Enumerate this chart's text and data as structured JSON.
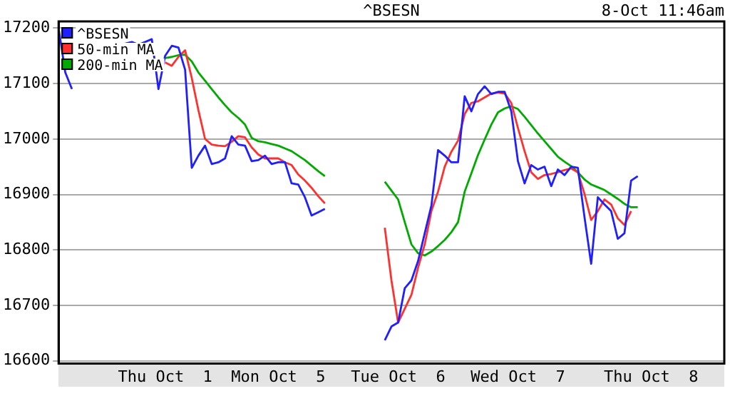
{
  "chart_data": {
    "type": "line",
    "title": "^BSESN",
    "subtitle": "8-Oct 11:46am",
    "categories": [
      null,
      null,
      null,
      null,
      null,
      null,
      null,
      null,
      null,
      null,
      null,
      null,
      null,
      null,
      null,
      null,
      "Thu Oct  1",
      null,
      null,
      null,
      null,
      null,
      null,
      null,
      null,
      null,
      null,
      null,
      null,
      null,
      null,
      null,
      null,
      "Mon Oct  5",
      null,
      null,
      null,
      null,
      null,
      null,
      null,
      null,
      null,
      null,
      null,
      null,
      null,
      null,
      null,
      null,
      null,
      "Tue Oct  6",
      null,
      null,
      null,
      null,
      null,
      null,
      null,
      null,
      null,
      null,
      null,
      null,
      null,
      null,
      null,
      null,
      null,
      "Wed Oct  7",
      null,
      null,
      null,
      null,
      null,
      null,
      null,
      null,
      null,
      null,
      null,
      null,
      null,
      null,
      null,
      null,
      null,
      null,
      null,
      "Thu Oct  8",
      null,
      null,
      null,
      null,
      null,
      null,
      null,
      null,
      null,
      null,
      null
    ],
    "ylim": [
      16595,
      17212
    ],
    "yticks": [
      16600,
      16700,
      16800,
      16900,
      17000,
      17100,
      17200
    ],
    "grid": "y",
    "legend": "top left",
    "series": [
      {
        "name": "^BSESN",
        "color": "#1f1fff",
        "values": [
          17200,
          17120,
          17090,
          null,
          null,
          null,
          null,
          null,
          null,
          null,
          17172,
          17175,
          17170,
          17175,
          17180,
          17090,
          17150,
          17168,
          17165,
          17125,
          16948,
          16970,
          16988,
          16955,
          16958,
          16965,
          17005,
          16990,
          16988,
          16960,
          16962,
          16970,
          16955,
          16958,
          16958,
          16920,
          16918,
          16895,
          16862,
          16868,
          16874,
          null,
          null,
          null,
          null,
          null,
          null,
          null,
          null,
          16637,
          16662,
          16669,
          16731,
          16745,
          16780,
          16830,
          16880,
          16980,
          16970,
          16958,
          16958,
          17077,
          17050,
          17081,
          17095,
          17081,
          17085,
          17085,
          17050,
          16960,
          16920,
          16953,
          16945,
          16950,
          16915,
          16945,
          16935,
          16950,
          16948,
          16859,
          16775,
          16895,
          16882,
          16870,
          16820,
          16830,
          16925,
          16933,
          null,
          null,
          null,
          null,
          null,
          null,
          null,
          null,
          null,
          null,
          null,
          null,
          null
        ]
      },
      {
        "name": "50-min MA",
        "color": "#ff3030",
        "values": [
          null,
          null,
          null,
          null,
          null,
          null,
          null,
          null,
          null,
          null,
          null,
          null,
          null,
          null,
          null,
          null,
          17138,
          17132,
          17148,
          17160,
          17110,
          17052,
          17000,
          16990,
          16988,
          16987,
          16995,
          17005,
          17003,
          16985,
          16972,
          16965,
          16965,
          16965,
          16958,
          16953,
          16936,
          16925,
          16912,
          16897,
          16884,
          null,
          null,
          null,
          null,
          null,
          null,
          null,
          null,
          16840,
          16745,
          16669,
          16694,
          16719,
          16768,
          16810,
          16870,
          16905,
          16950,
          16977,
          16997,
          17045,
          17065,
          17068,
          17075,
          17082,
          17084,
          17082,
          17065,
          17020,
          16978,
          16940,
          16928,
          16935,
          16937,
          16940,
          16944,
          16947,
          16940,
          16901,
          16854,
          16870,
          16891,
          16882,
          16857,
          16845,
          16870,
          null,
          null,
          null,
          null,
          null,
          null,
          null,
          null,
          null,
          null,
          null,
          null,
          null,
          null
        ]
      },
      {
        "name": "200-min MA",
        "color": "#00aa00",
        "values": [
          null,
          null,
          null,
          null,
          null,
          null,
          null,
          null,
          null,
          null,
          null,
          null,
          null,
          null,
          null,
          null,
          17146,
          17148,
          17151,
          17152,
          17140,
          17120,
          17105,
          17090,
          17075,
          17061,
          17048,
          17038,
          17026,
          17002,
          16996,
          16994,
          16991,
          16988,
          16983,
          16978,
          16970,
          16962,
          16952,
          16942,
          16933,
          null,
          null,
          null,
          null,
          null,
          null,
          null,
          null,
          16923,
          16907,
          16891,
          16850,
          16810,
          16794,
          16790,
          16797,
          16807,
          16818,
          16832,
          16850,
          16905,
          16938,
          16971,
          16999,
          17026,
          17048,
          17055,
          17059,
          17054,
          17040,
          17025,
          17010,
          16996,
          16982,
          16968,
          16959,
          16951,
          16940,
          16927,
          16918,
          16913,
          16908,
          16900,
          16892,
          16883,
          16877,
          16877,
          null,
          null,
          null,
          null,
          null,
          null,
          null,
          null,
          null,
          null,
          null,
          null,
          null
        ]
      }
    ]
  }
}
